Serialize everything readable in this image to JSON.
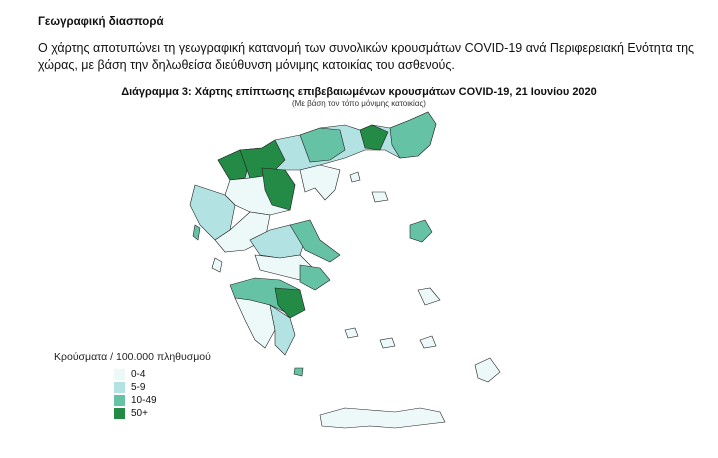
{
  "heading": "Γεωγραφική διασπορά",
  "paragraph": "Ο χάρτης αποτυπώνει τη γεωγραφική κατανομή των συνολικών κρουσμάτων COVID-19 ανά Περιφερειακή Ενότητα της χώρας, με βάση την δηλωθείσα διεύθυνση μόνιμης κατοικίας του ασθενούς.",
  "figure": {
    "title": "Διάγραμμα 3: Χάρτης επίπτωσης επιβεβαιωμένων κρουσμάτων COVID-19, 21 Ιουνίου 2020",
    "subtitle": "(Με βάση τον τόπο μόνιμης κατοικίας)",
    "legend": {
      "title": "Κρούσματα / 100.000 πληθυσμού",
      "items": [
        {
          "label": "0-4",
          "color": "#edf8f9"
        },
        {
          "label": "5-9",
          "color": "#b2e2e2"
        },
        {
          "label": "10-49",
          "color": "#66c2a4"
        },
        {
          "label": "50+",
          "color": "#238b45"
        }
      ]
    }
  }
}
